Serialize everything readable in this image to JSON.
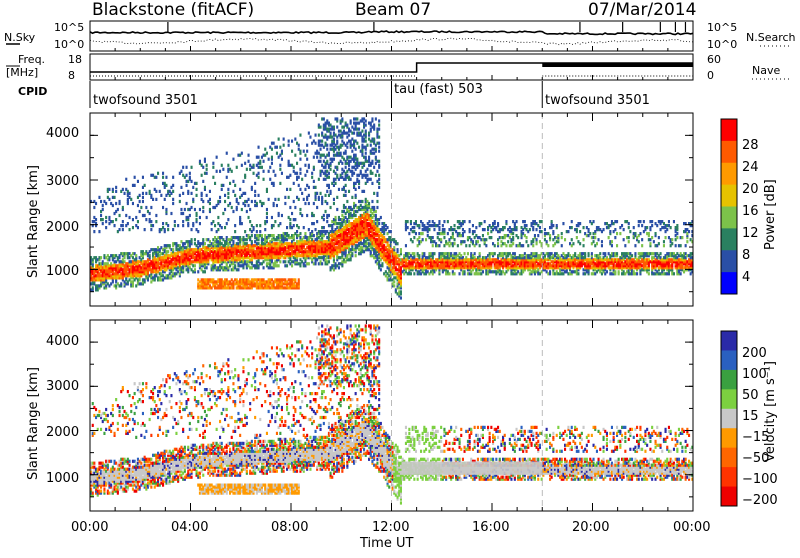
{
  "header": {
    "station": "Blackstone (fitACF)",
    "beam": "Beam 07",
    "date": "07/Mar/2014"
  },
  "status": {
    "nsky_label": "N.Sky",
    "nsearch_label": "N.Search",
    "noise_ticks": [
      "10^5",
      "10^0"
    ],
    "freq_label_1": "Freq.",
    "freq_label_2": "[MHz]",
    "freq_ticks": [
      18,
      8
    ],
    "nave_label": "Nave",
    "nave_ticks": [
      60,
      0
    ],
    "cpid_label": "CPID",
    "cpid_segments": [
      {
        "label": "twofsound 3501",
        "start_hour": 0
      },
      {
        "label": "tau (fast) 503",
        "start_hour": 12
      },
      {
        "label": "twofsound 3501",
        "start_hour": 18
      }
    ]
  },
  "colors": {
    "power_scale": [
      "#0000ff",
      "#2a4fa6",
      "#2a8060",
      "#7cc24a",
      "#e6c200",
      "#ff9a00",
      "#ff5a00",
      "#ff0000"
    ],
    "velocity_scale": [
      "#2a2aa8",
      "#2a60c0",
      "#3aa040",
      "#7cd040",
      "#c8c8c8",
      "#ff9a00",
      "#ff6600",
      "#ff3300",
      "#ee0000"
    ]
  },
  "chart_data": [
    {
      "type": "heatmap",
      "name": "power",
      "xlabel": "",
      "ylabel": "Slant Range [km]",
      "xlim": [
        0,
        24
      ],
      "ylim": [
        180,
        4500
      ],
      "yticks": [
        1000,
        2000,
        3000,
        4000
      ],
      "colorbar": {
        "label": "Power [dB]",
        "ticks": [
          4,
          8,
          12,
          16,
          20,
          24,
          28
        ],
        "range": [
          0,
          32
        ]
      },
      "features": [
        {
          "desc": "main band",
          "x": [
            0,
            2,
            4,
            6,
            8,
            10,
            11,
            12
          ],
          "y": [
            900,
            1050,
            1350,
            1450,
            1500,
            1500,
            1900,
            1000
          ],
          "peak_db": 28
        },
        {
          "desc": "lower patch",
          "x": [
            4,
            8
          ],
          "y": [
            600,
            750
          ],
          "peak_db": 20
        },
        {
          "desc": "steady band",
          "x": [
            12,
            18,
            24
          ],
          "y": [
            1100,
            1150,
            1100
          ],
          "peak_db": 26
        }
      ]
    },
    {
      "type": "heatmap",
      "name": "velocity",
      "xlabel": "Time UT",
      "ylabel": "Slant Range [km]",
      "xlim": [
        0,
        24
      ],
      "ylim": [
        180,
        4500
      ],
      "xticks": [
        "00:00",
        "04:00",
        "08:00",
        "12:00",
        "16:00",
        "20:00",
        "00:00"
      ],
      "yticks": [
        1000,
        2000,
        3000,
        4000
      ],
      "colorbar": {
        "label": "Velocity [m s⁻¹]",
        "ticks": [
          200,
          100,
          50,
          15,
          -15,
          -50,
          -100,
          -200
        ],
        "range": [
          -250,
          250
        ]
      }
    }
  ],
  "xaxis_title": "Time UT",
  "xaxis_ticks": [
    "00:00",
    "04:00",
    "08:00",
    "12:00",
    "16:00",
    "20:00",
    "00:00"
  ],
  "yaxis_ticks": [
    "1000",
    "2000",
    "3000",
    "4000"
  ],
  "ylabel": "Slant Range [km]",
  "power_ticks": [
    "28",
    "24",
    "20",
    "16",
    "12",
    "8",
    "4"
  ],
  "power_label": "Power [dB]",
  "velocity_ticks": [
    "200",
    "100",
    "50",
    "15",
    "−15",
    "−50",
    "−100",
    "−200"
  ],
  "velocity_label": "Velocity [m s⁻¹]"
}
